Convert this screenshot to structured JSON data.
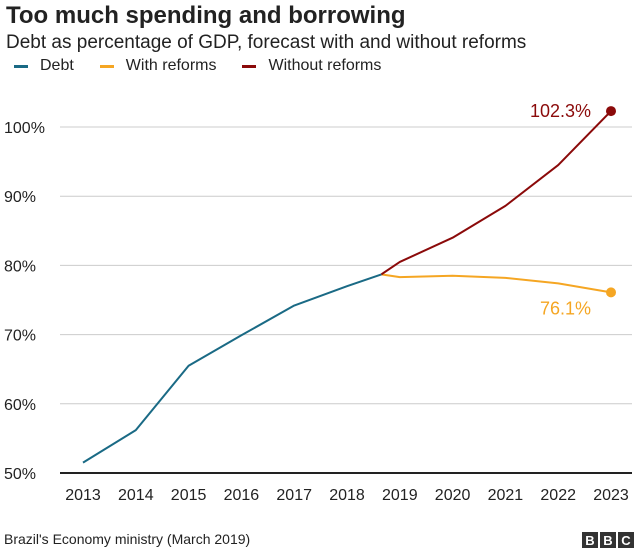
{
  "chart_data": {
    "type": "line",
    "title": "Too much spending and borrowing",
    "subtitle": "Debt as percentage of GDP, forecast with and without reforms",
    "xlabel": "",
    "ylabel": "",
    "xlim": [
      2013,
      2023
    ],
    "ylim": [
      50,
      100
    ],
    "x_ticks": [
      "2013",
      "2014",
      "2015",
      "2016",
      "2017",
      "2018",
      "2019",
      "2020",
      "2021",
      "2022",
      "2023"
    ],
    "y_ticks": [
      {
        "v": 50,
        "label": "50%"
      },
      {
        "v": 60,
        "label": "60%"
      },
      {
        "v": 70,
        "label": "70%"
      },
      {
        "v": 80,
        "label": "80%"
      },
      {
        "v": 90,
        "label": "90%"
      },
      {
        "v": 100,
        "label": "100%"
      }
    ],
    "grid": "horizontal",
    "legend_placement": "top-left",
    "series": [
      {
        "name": "Debt",
        "color": "#1a6a85",
        "x": [
          2013,
          2014,
          2015,
          2016,
          2017,
          2018,
          2018.65
        ],
        "y": [
          51.5,
          56.2,
          65.5,
          69.9,
          74.2,
          77.0,
          78.7
        ]
      },
      {
        "name": "With reforms",
        "color": "#f5a623",
        "x": [
          2018.65,
          2019,
          2020,
          2021,
          2022,
          2023
        ],
        "y": [
          78.7,
          78.3,
          78.5,
          78.2,
          77.4,
          76.1
        ],
        "end_label": "76.1%"
      },
      {
        "name": "Without reforms",
        "color": "#8b0a0a",
        "x": [
          2018.65,
          2019,
          2020,
          2021,
          2022,
          2023
        ],
        "y": [
          78.7,
          80.5,
          84.0,
          88.6,
          94.5,
          102.3
        ],
        "end_label": "102.3%"
      }
    ]
  },
  "source": "Brazil's Economy ministry (March 2019)",
  "logo": [
    "B",
    "B",
    "C"
  ]
}
